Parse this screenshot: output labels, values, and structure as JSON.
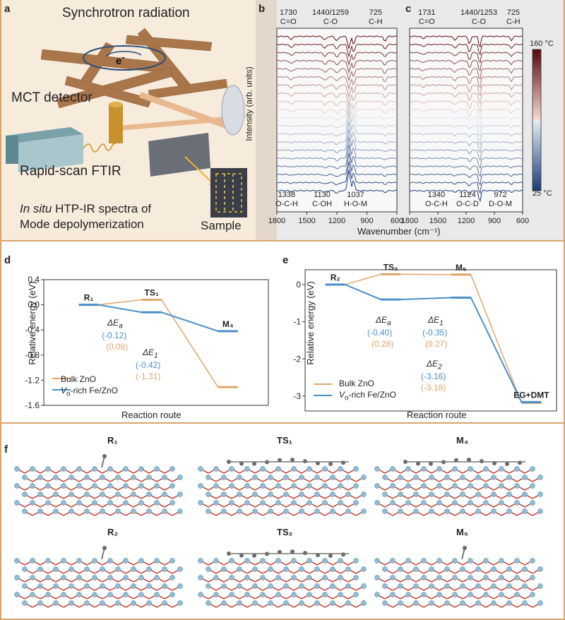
{
  "panel_labels": {
    "a": "a",
    "b": "b",
    "c": "c",
    "d": "d",
    "e": "e",
    "f": "f"
  },
  "panel_a": {
    "synchrotron": "Synchrotron radiation",
    "electron": "e",
    "mct": "MCT detector",
    "ftir": "Rapid-scan FTIR",
    "caption_line1_italic": "In situ",
    "caption_line1_rest": " HTP-IR spectra of",
    "caption_line2": "Mode depolymerization",
    "sample": "Sample"
  },
  "panel_b": {
    "top_peaks": [
      {
        "num": "1730",
        "grp": "C=O"
      },
      {
        "num": "1440/1259",
        "grp": "C-O"
      },
      {
        "num": "725",
        "grp": "C-H"
      }
    ],
    "bottom_peaks": [
      {
        "num": "1338",
        "grp": "O-C-H"
      },
      {
        "num": "1130",
        "grp": "C-OH"
      },
      {
        "num": "1037",
        "grp": "H-O-M"
      }
    ],
    "ylabel": "Intensity (arb. units)",
    "xticks": [
      "1800",
      "1500",
      "1200",
      "900",
      "600"
    ]
  },
  "panel_c": {
    "top_peaks": [
      {
        "num": "1731",
        "grp": "C=O"
      },
      {
        "num": "1440/1253",
        "grp": "C-O"
      },
      {
        "num": "725",
        "grp": "C-H"
      }
    ],
    "bottom_peaks": [
      {
        "num": "1340",
        "grp": "O-C-H"
      },
      {
        "num": "1124",
        "grp": "O-C-D"
      },
      {
        "num": "972",
        "grp": "D-O-M"
      }
    ],
    "xticks": [
      "1800",
      "1500",
      "1200",
      "900",
      "600"
    ]
  },
  "spectra_xlabel": "Wavenumber (cm⁻¹)",
  "colorbar": {
    "top": "160 °C",
    "bottom": "25 °C"
  },
  "panel_d": {
    "ylabel": "Relative energy (eV)",
    "xlabel": "Reaction route",
    "yticks": [
      "0.4",
      "0.0",
      "-0.4",
      "-0.8",
      "-1.2",
      "-1.6"
    ],
    "states": [
      "R₁",
      "TS₁",
      "M₄"
    ],
    "dEa_label": "ΔE",
    "dEa_sub": "a",
    "dEa_blue": "(-0.12)",
    "dEa_orange": "(0.08)",
    "dE1_label": "ΔE",
    "dE1_sub": "1",
    "dE1_blue": "(-0.42)",
    "dE1_orange": "(-1.31)",
    "legend_bulk": "Bulk ZnO",
    "legend_vo_italic": "V",
    "legend_vo_sub": "o",
    "legend_vo_rest": "-rich Fe/ZnO"
  },
  "panel_e": {
    "ylabel": "Relative energy (eV)",
    "xlabel": "Reaction route",
    "yticks": [
      "0",
      "-1",
      "-2",
      "-3"
    ],
    "states": [
      "R₂",
      "TS₂",
      "M₅",
      "EG+DMT"
    ],
    "dEa_blue": "(-0.40)",
    "dEa_orange": "(0.28)",
    "dE1_blue": "(-0.35)",
    "dE1_orange": "(0.27)",
    "dE2_label": "ΔE",
    "dE2_sub": "2",
    "dE2_blue": "(-3.16)",
    "dE2_orange": "(-3.18)",
    "legend_bulk": "Bulk ZnO",
    "legend_vo_rest": "-rich Fe/ZnO"
  },
  "panel_f": {
    "structures": [
      "R₁",
      "TS₁",
      "M₄",
      "R₂",
      "TS₂",
      "M₅"
    ]
  },
  "colors": {
    "orange": "#e0a56a",
    "blue": "#4a90c8",
    "frame": "#d9a46a"
  },
  "chart_data": [
    {
      "type": "line",
      "title": "d",
      "xlabel": "Reaction route",
      "ylabel": "Relative energy (eV)",
      "categories": [
        "R₁",
        "TS₁",
        "M₄"
      ],
      "ylim": [
        -1.6,
        0.4
      ],
      "series": [
        {
          "name": "Bulk ZnO",
          "values": [
            0.0,
            0.08,
            -1.31
          ]
        },
        {
          "name": "Vo-rich Fe/ZnO",
          "values": [
            0.0,
            -0.12,
            -0.42
          ]
        }
      ]
    },
    {
      "type": "line",
      "title": "e",
      "xlabel": "Reaction route",
      "ylabel": "Relative energy (eV)",
      "categories": [
        "R₂",
        "TS₂",
        "M₅",
        "EG+DMT"
      ],
      "ylim": [
        -3.4,
        0.4
      ],
      "series": [
        {
          "name": "Bulk ZnO",
          "values": [
            0.0,
            0.28,
            0.27,
            -3.18
          ]
        },
        {
          "name": "Vo-rich Fe/ZnO",
          "values": [
            0.0,
            -0.4,
            -0.35,
            -3.16
          ]
        }
      ]
    }
  ]
}
